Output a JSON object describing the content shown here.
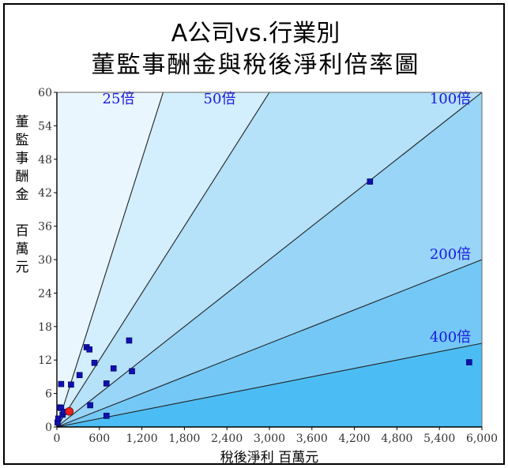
{
  "title": {
    "line1": "A公司vs.行業別",
    "line2": "董監事酬金與稅後淨利倍率圖"
  },
  "chart_data": {
    "type": "scatter",
    "xlabel": "稅後淨利 百萬元",
    "ylabel_lines": [
      "董",
      "監",
      "事",
      "酬",
      "金",
      "",
      "百",
      "萬",
      "元"
    ],
    "xlim": [
      0,
      6000
    ],
    "ylim": [
      0,
      60
    ],
    "x_ticks": [
      0,
      600,
      1200,
      1800,
      2400,
      3000,
      3600,
      4200,
      4800,
      5400,
      6000
    ],
    "x_tick_labels": [
      "0",
      "600",
      "1,200",
      "1,800",
      "2,400",
      "3,000",
      "3,600",
      "4,200",
      "4,800",
      "5,400",
      "6,000"
    ],
    "y_ticks": [
      0,
      6,
      12,
      18,
      24,
      30,
      36,
      42,
      48,
      54,
      60
    ],
    "y_tick_labels": [
      "0",
      "6",
      "12",
      "18",
      "24",
      "30",
      "36",
      "42",
      "48",
      "54",
      "60"
    ],
    "reference_lines": [
      {
        "label": "25倍",
        "multiple": 25
      },
      {
        "label": "50倍",
        "multiple": 50
      },
      {
        "label": "100倍",
        "multiple": 100
      },
      {
        "label": "200倍",
        "multiple": 200
      },
      {
        "label": "400倍",
        "multiple": 400
      }
    ],
    "series": [
      {
        "marker": "square",
        "color": "#1010b0",
        "points": [
          [
            10,
            0.8
          ],
          [
            20,
            1.5
          ],
          [
            40,
            3.5
          ],
          [
            60,
            3.4
          ],
          [
            60,
            7.7
          ],
          [
            80,
            2.2
          ],
          [
            100,
            2.7
          ],
          [
            200,
            7.6
          ],
          [
            320,
            9.3
          ],
          [
            420,
            14.3
          ],
          [
            460,
            13.9
          ],
          [
            470,
            3.9
          ],
          [
            530,
            11.5
          ],
          [
            700,
            7.8
          ],
          [
            700,
            2.0
          ],
          [
            800,
            10.5
          ],
          [
            1020,
            15.5
          ],
          [
            1060,
            10.0
          ],
          [
            4420,
            44.0
          ],
          [
            5820,
            11.6
          ]
        ]
      },
      {
        "name": "A公司",
        "marker": "circle",
        "color": "#e8201c",
        "points": [
          [
            175,
            2.8
          ]
        ]
      }
    ],
    "band_colors": [
      "#eaf6fd",
      "#d3eefc",
      "#b5e1f9",
      "#98d5f7",
      "#74c8f6",
      "#4cbdf4"
    ],
    "grid": false
  }
}
